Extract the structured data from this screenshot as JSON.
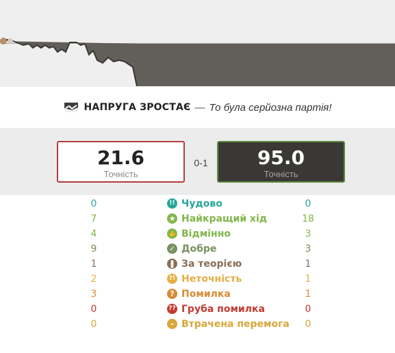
{
  "evaluation_graph": {
    "label": "evaluation-graph",
    "white_color": "#efefef",
    "black_color": "#625f5a"
  },
  "headline": {
    "icon": "tension-graph-icon",
    "title": "НАПРУГА ЗРОСТАЄ",
    "dash": "—",
    "subtitle": "То була серйозна партія!"
  },
  "accuracy": {
    "white": {
      "value": "21.6",
      "label": "Точність",
      "border_color": "#b23b3b"
    },
    "black": {
      "value": "95.0",
      "label": "Точність",
      "border_color": "#5f8d3e"
    },
    "result": "0-1"
  },
  "move_stats": [
    {
      "label": "Чудово",
      "white": "0",
      "black": "0",
      "color": "#26a69a",
      "icon": "brilliant-icon"
    },
    {
      "label": "Найкращий хід",
      "white": "7",
      "black": "18",
      "color": "#81b64c",
      "icon": "best-move-icon"
    },
    {
      "label": "Відмінно",
      "white": "4",
      "black": "3",
      "color": "#81b64c",
      "icon": "excellent-icon"
    },
    {
      "label": "Добре",
      "white": "9",
      "black": "3",
      "color": "#77915f",
      "icon": "good-icon"
    },
    {
      "label": "За теорією",
      "white": "1",
      "black": "1",
      "color": "#8b6e57",
      "icon": "book-icon"
    },
    {
      "label": "Неточність",
      "white": "2",
      "black": "1",
      "color": "#e6ae47",
      "icon": "inaccuracy-icon"
    },
    {
      "label": "Помилка",
      "white": "3",
      "black": "1",
      "color": "#d98a35",
      "icon": "mistake-icon"
    },
    {
      "label": "Груба помилка",
      "white": "0",
      "black": "0",
      "color": "#c33a32",
      "icon": "blunder-icon"
    },
    {
      "label": "Втрачена перемога",
      "white": "0",
      "black": "0",
      "color": "#d7a73a",
      "icon": "missed-win-icon"
    }
  ]
}
